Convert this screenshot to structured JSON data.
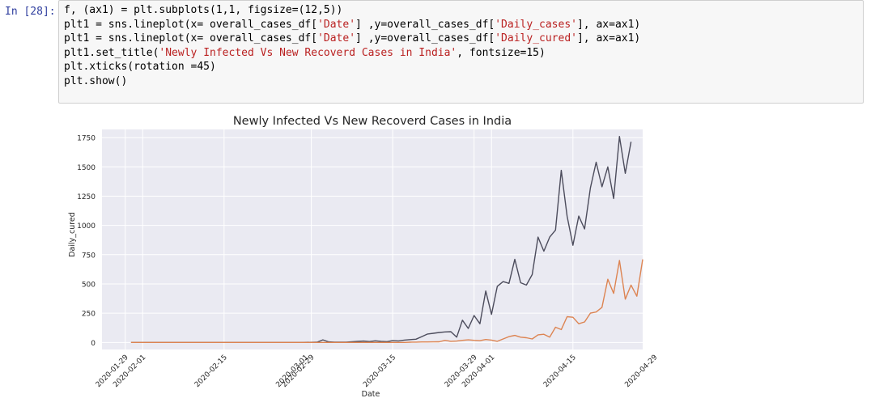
{
  "notebook": {
    "prompt": "In [28]:",
    "code_lines": [
      [
        {
          "t": "f, (ax1) = plt.subplots(1,1, figsize=(12,5))"
        }
      ],
      [
        {
          "t": "plt1 = sns.lineplot(x= overall_cases_df["
        },
        {
          "t": "'Date'",
          "s": true
        },
        {
          "t": "] ,y=overall_cases_df["
        },
        {
          "t": "'Daily_cases'",
          "s": true
        },
        {
          "t": "], ax=ax1)"
        }
      ],
      [
        {
          "t": "plt1 = sns.lineplot(x= overall_cases_df["
        },
        {
          "t": "'Date'",
          "s": true
        },
        {
          "t": "] ,y=overall_cases_df["
        },
        {
          "t": "'Daily_cured'",
          "s": true
        },
        {
          "t": "], ax=ax1)"
        }
      ],
      [
        {
          "t": "plt1.set_title("
        },
        {
          "t": "'Newly Infected Vs New Recoverd Cases in India'",
          "s": true
        },
        {
          "t": ", fontsize=15)"
        }
      ],
      [
        {
          "t": "plt.xticks(rotation =45)"
        }
      ],
      [
        {
          "t": "plt.show()"
        }
      ]
    ]
  },
  "chart_data": {
    "type": "line",
    "title": "Newly Infected Vs New Recoverd Cases in India",
    "xlabel": "Date",
    "ylabel": "Daily_cured",
    "ylim": [
      -60,
      1820
    ],
    "xlim": [
      "2020-01-25",
      "2020-04-27"
    ],
    "yticks": [
      0,
      250,
      500,
      750,
      1000,
      1250,
      1500,
      1750
    ],
    "xticks": [
      "2020-01-29",
      "2020-02-01",
      "2020-02-15",
      "2020-03-01",
      "2020-03-15",
      "2020-03-29",
      "2020-04-01",
      "2020-04-15",
      "2020-04-29"
    ],
    "xtick_labels": [
      "2020-01-29",
      "2020-02-01",
      "2020-02-15",
      "2020-02-29",
      "2020-03-15",
      "2020-03-29",
      "2020-04-01",
      "2020-04-15",
      "2020-04-29"
    ],
    "extra_xtick_labels": [
      {
        "date": "2020-02-29",
        "label": "2020-03-01"
      }
    ],
    "grid": true,
    "background": "#eaeaf2",
    "series": [
      {
        "color": "#4c4c5c",
        "points": [
          [
            "2020-01-30",
            0
          ],
          [
            "2020-02-28",
            0
          ],
          [
            "2020-03-02",
            2
          ],
          [
            "2020-03-03",
            22
          ],
          [
            "2020-03-04",
            5
          ],
          [
            "2020-03-05",
            3
          ],
          [
            "2020-03-06",
            2
          ],
          [
            "2020-03-07",
            3
          ],
          [
            "2020-03-08",
            6
          ],
          [
            "2020-03-09",
            9
          ],
          [
            "2020-03-10",
            12
          ],
          [
            "2020-03-11",
            8
          ],
          [
            "2020-03-12",
            14
          ],
          [
            "2020-03-13",
            10
          ],
          [
            "2020-03-14",
            7
          ],
          [
            "2020-03-15",
            15
          ],
          [
            "2020-03-16",
            13
          ],
          [
            "2020-03-17",
            20
          ],
          [
            "2020-03-18",
            24
          ],
          [
            "2020-03-19",
            28
          ],
          [
            "2020-03-20",
            50
          ],
          [
            "2020-03-21",
            72
          ],
          [
            "2020-03-22",
            78
          ],
          [
            "2020-03-23",
            85
          ],
          [
            "2020-03-24",
            90
          ],
          [
            "2020-03-25",
            92
          ],
          [
            "2020-03-26",
            45
          ],
          [
            "2020-03-27",
            190
          ],
          [
            "2020-03-28",
            120
          ],
          [
            "2020-03-29",
            230
          ],
          [
            "2020-03-30",
            160
          ],
          [
            "2020-03-31",
            440
          ],
          [
            "2020-04-01",
            240
          ],
          [
            "2020-04-02",
            480
          ],
          [
            "2020-04-03",
            520
          ],
          [
            "2020-04-04",
            505
          ],
          [
            "2020-04-05",
            710
          ],
          [
            "2020-04-06",
            510
          ],
          [
            "2020-04-07",
            490
          ],
          [
            "2020-04-08",
            580
          ],
          [
            "2020-04-09",
            900
          ],
          [
            "2020-04-10",
            780
          ],
          [
            "2020-04-11",
            900
          ],
          [
            "2020-04-12",
            960
          ],
          [
            "2020-04-13",
            1470
          ],
          [
            "2020-04-14",
            1080
          ],
          [
            "2020-04-15",
            830
          ],
          [
            "2020-04-16",
            1080
          ],
          [
            "2020-04-17",
            970
          ],
          [
            "2020-04-18",
            1320
          ],
          [
            "2020-04-19",
            1540
          ],
          [
            "2020-04-20",
            1330
          ],
          [
            "2020-04-21",
            1500
          ],
          [
            "2020-04-22",
            1230
          ],
          [
            "2020-04-23",
            1760
          ],
          [
            "2020-04-24",
            1445
          ],
          [
            "2020-04-25",
            1715
          ]
        ]
      },
      {
        "color": "#dd8452",
        "points": [
          [
            "2020-01-30",
            0
          ],
          [
            "2020-03-17",
            0
          ],
          [
            "2020-03-18",
            2
          ],
          [
            "2020-03-19",
            3
          ],
          [
            "2020-03-20",
            4
          ],
          [
            "2020-03-21",
            4
          ],
          [
            "2020-03-22",
            5
          ],
          [
            "2020-03-23",
            6
          ],
          [
            "2020-03-24",
            18
          ],
          [
            "2020-03-25",
            10
          ],
          [
            "2020-03-26",
            12
          ],
          [
            "2020-03-27",
            18
          ],
          [
            "2020-03-28",
            22
          ],
          [
            "2020-03-29",
            18
          ],
          [
            "2020-03-30",
            15
          ],
          [
            "2020-03-31",
            25
          ],
          [
            "2020-04-01",
            20
          ],
          [
            "2020-04-02",
            10
          ],
          [
            "2020-04-03",
            30
          ],
          [
            "2020-04-04",
            50
          ],
          [
            "2020-04-05",
            60
          ],
          [
            "2020-04-06",
            45
          ],
          [
            "2020-04-07",
            40
          ],
          [
            "2020-04-08",
            30
          ],
          [
            "2020-04-09",
            65
          ],
          [
            "2020-04-10",
            70
          ],
          [
            "2020-04-11",
            45
          ],
          [
            "2020-04-12",
            130
          ],
          [
            "2020-04-13",
            110
          ],
          [
            "2020-04-14",
            220
          ],
          [
            "2020-04-15",
            215
          ],
          [
            "2020-04-16",
            160
          ],
          [
            "2020-04-17",
            175
          ],
          [
            "2020-04-18",
            250
          ],
          [
            "2020-04-19",
            260
          ],
          [
            "2020-04-20",
            300
          ],
          [
            "2020-04-21",
            540
          ],
          [
            "2020-04-22",
            420
          ],
          [
            "2020-04-23",
            700
          ],
          [
            "2020-04-24",
            370
          ],
          [
            "2020-04-25",
            490
          ],
          [
            "2020-04-26",
            395
          ],
          [
            "2020-04-27",
            710
          ]
        ]
      }
    ]
  }
}
